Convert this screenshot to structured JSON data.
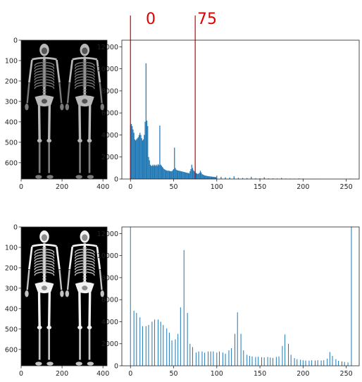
{
  "markers": [
    "0",
    "75"
  ],
  "images": [
    {
      "variant": "original",
      "xticks": [
        0,
        200,
        400
      ],
      "yticks": [
        0,
        100,
        200,
        300,
        400,
        500,
        600
      ],
      "xlim": [
        0,
        420
      ],
      "ylim": [
        0,
        680
      ]
    },
    {
      "variant": "stretched",
      "xticks": [
        0,
        200,
        400
      ],
      "yticks": [
        0,
        100,
        200,
        300,
        400,
        500,
        600
      ],
      "xlim": [
        0,
        420
      ],
      "ylim": [
        0,
        680
      ]
    }
  ],
  "chart_data": [
    {
      "type": "bar",
      "title": "",
      "xlabel": "",
      "ylabel": "",
      "xlim": [
        -10,
        265
      ],
      "ylim": [
        0,
        12600
      ],
      "xticks": [
        0,
        50,
        100,
        150,
        200,
        250
      ],
      "yticks": [
        0,
        2000,
        4000,
        6000,
        8000,
        10000,
        12000
      ],
      "color": "#1f77b4",
      "vlines": [
        0,
        75
      ],
      "vline_color": "#cc0000",
      "x": [
        0,
        1,
        2,
        3,
        4,
        5,
        6,
        7,
        8,
        9,
        10,
        11,
        12,
        13,
        14,
        15,
        16,
        17,
        18,
        19,
        20,
        21,
        22,
        23,
        24,
        25,
        26,
        27,
        28,
        29,
        30,
        31,
        32,
        33,
        34,
        35,
        36,
        37,
        38,
        39,
        40,
        41,
        42,
        43,
        44,
        45,
        46,
        47,
        48,
        49,
        50,
        51,
        52,
        53,
        54,
        55,
        56,
        57,
        58,
        59,
        60,
        61,
        62,
        63,
        64,
        65,
        66,
        67,
        68,
        69,
        70,
        71,
        72,
        73,
        74,
        75,
        76,
        77,
        78,
        79,
        80,
        81,
        82,
        83,
        84,
        85,
        86,
        87,
        88,
        89,
        90,
        91,
        92,
        93,
        94,
        95,
        96,
        97,
        98,
        99,
        100,
        105,
        110,
        115,
        120,
        125,
        130,
        135,
        140,
        145,
        150,
        155,
        160,
        165,
        170,
        175,
        180,
        185,
        190,
        195,
        200,
        210,
        220,
        230,
        240,
        250,
        255
      ],
      "values": [
        4900,
        5000,
        4800,
        4500,
        4200,
        3600,
        3500,
        3600,
        3700,
        3800,
        4000,
        4200,
        4000,
        3700,
        3500,
        3600,
        4000,
        5200,
        10500,
        5300,
        4800,
        2000,
        1700,
        1300,
        1200,
        1200,
        1300,
        1200,
        1300,
        1200,
        1300,
        1200,
        1350,
        1250,
        4850,
        1300,
        1200,
        1100,
        1000,
        900,
        850,
        800,
        780,
        750,
        760,
        740,
        720,
        700,
        720,
        800,
        900,
        2850,
        1000,
        850,
        800,
        780,
        760,
        740,
        720,
        700,
        680,
        660,
        640,
        620,
        600,
        580,
        560,
        540,
        520,
        700,
        900,
        1300,
        1000,
        800,
        700,
        600,
        550,
        500,
        450,
        500,
        560,
        750,
        600,
        450,
        400,
        360,
        330,
        310,
        290,
        270,
        260,
        250,
        240,
        230,
        220,
        210,
        200,
        190,
        180,
        170,
        300,
        200,
        150,
        130,
        250,
        110,
        100,
        90,
        200,
        80,
        70,
        160,
        60,
        55,
        50,
        100,
        45,
        40,
        35,
        60,
        40,
        30,
        25,
        20,
        15,
        10,
        40
      ]
    },
    {
      "type": "bar",
      "title": "",
      "xlabel": "",
      "ylabel": "",
      "xlim": [
        -10,
        265
      ],
      "ylim": [
        0,
        12600
      ],
      "xticks": [
        0,
        50,
        100,
        150,
        200,
        250
      ],
      "yticks": [
        0,
        2000,
        4000,
        6000,
        8000,
        10000,
        12000
      ],
      "color": "#1f77b4",
      "x": [
        0,
        4,
        7,
        11,
        14,
        18,
        21,
        25,
        28,
        32,
        35,
        38,
        42,
        45,
        48,
        52,
        55,
        58,
        62,
        66,
        69,
        72,
        76,
        79,
        83,
        86,
        90,
        93,
        96,
        100,
        103,
        107,
        110,
        114,
        117,
        121,
        124,
        128,
        131,
        135,
        138,
        141,
        145,
        148,
        152,
        155,
        159,
        162,
        165,
        169,
        172,
        176,
        179,
        183,
        186,
        190,
        193,
        197,
        200,
        203,
        207,
        210,
        214,
        217,
        221,
        224,
        228,
        231,
        234,
        238,
        241,
        245,
        248,
        252,
        256
      ],
      "values": [
        12600,
        5000,
        4800,
        4400,
        3600,
        3600,
        3700,
        4000,
        4200,
        4200,
        4000,
        3700,
        3400,
        3000,
        2300,
        2400,
        2900,
        5300,
        10500,
        4800,
        2000,
        1700,
        1200,
        1300,
        1300,
        1200,
        1300,
        1300,
        1300,
        1200,
        1300,
        1200,
        1100,
        1400,
        1600,
        2900,
        4850,
        2900,
        1400,
        1000,
        900,
        850,
        800,
        820,
        780,
        760,
        800,
        750,
        720,
        800,
        850,
        1800,
        2850,
        2000,
        1000,
        700,
        600,
        550,
        500,
        480,
        470,
        500,
        480,
        500,
        480,
        500,
        650,
        1250,
        900,
        600,
        450,
        400,
        350,
        300,
        12600
      ]
    }
  ]
}
